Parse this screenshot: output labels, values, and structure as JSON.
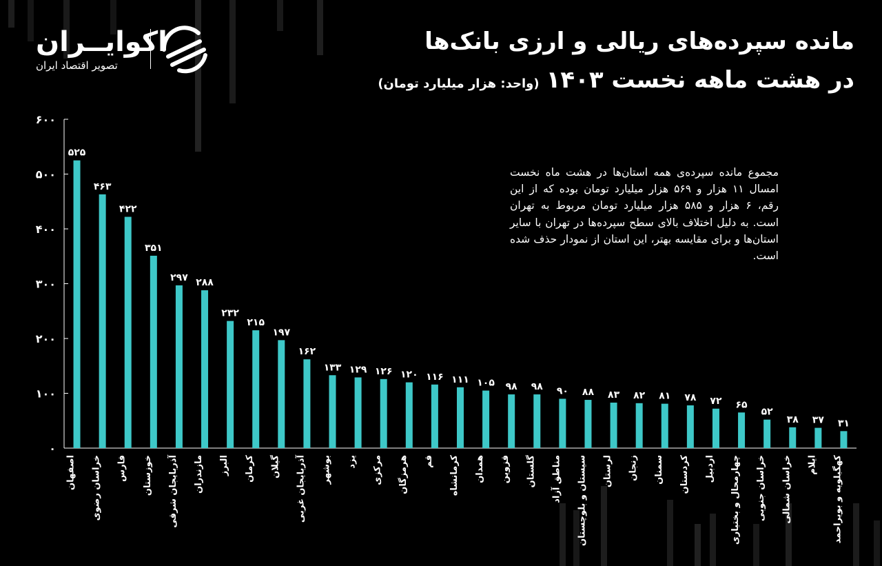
{
  "brand": {
    "name": "اکوایــران",
    "tagline": "تصویر اقتصاد ایران",
    "icon": "ecoiran-logo-icon"
  },
  "header": {
    "title_line1": "مانده سپرده‌های ریالی و ارزی بانک‌ها",
    "title_line2": "در هشت ماهه نخست ۱۴۰۳",
    "unit": "(واحد: هزار میلیارد تومان)"
  },
  "note": "مجموع مانده سپرده‌ی همه استان‌ها در هشت ماه نخست امسال ۱۱ هزار و ۵۶۹ هزار میلیارد تومان بوده که از این رقم، ۶ هزار و ۵۸۵ هزار میلیارد تومان مربوط به تهران است. به دلیل اختلاف بالای سطح سپرده‌ها در تهران با سایر استان‌ها و برای مقایسه بهتر، این استان از نمودار حذف شده است.",
  "colors": {
    "background": "#000000",
    "bar": "#3ec8c8",
    "text": "#ffffff"
  },
  "chart_data": {
    "type": "bar",
    "ylim": [
      0,
      600
    ],
    "yticks": [
      0,
      100,
      200,
      300,
      400,
      500,
      600
    ],
    "ytick_labels": [
      "۰",
      "۱۰۰",
      "۲۰۰",
      "۳۰۰",
      "۴۰۰",
      "۵۰۰",
      "۶۰۰"
    ],
    "grid": false,
    "categories": [
      "اصفهان",
      "خراسان رضوی",
      "فارس",
      "خوزستان",
      "آذربایجان شرقی",
      "مازندران",
      "البرز",
      "کرمان",
      "گیلان",
      "آذربایجان غربی",
      "بوشهر",
      "یزد",
      "مرکزی",
      "هرمزگان",
      "قم",
      "کرمانشاه",
      "همدان",
      "قزوین",
      "گلستان",
      "مناطق آزاد",
      "سیستان و بلوچستان",
      "لرستان",
      "زنجان",
      "سمنان",
      "کردستان",
      "اردبیل",
      "چهارمحال و بختیاری",
      "خراسان جنوبی",
      "خراسان شمالی",
      "ایلام",
      "کهگیلویه و بویراحمد"
    ],
    "values": [
      525,
      463,
      422,
      351,
      297,
      288,
      232,
      215,
      197,
      162,
      133,
      129,
      126,
      120,
      116,
      111,
      105,
      98,
      98,
      90,
      88,
      83,
      82,
      81,
      78,
      72,
      65,
      52,
      38,
      37,
      31
    ],
    "value_labels": [
      "۵۲۵",
      "۴۶۳",
      "۴۲۲",
      "۳۵۱",
      "۲۹۷",
      "۲۸۸",
      "۲۳۲",
      "۲۱۵",
      "۱۹۷",
      "۱۶۲",
      "۱۳۳",
      "۱۲۹",
      "۱۲۶",
      "۱۲۰",
      "۱۱۶",
      "۱۱۱",
      "۱۰۵",
      "۹۸",
      "۹۸",
      "۹۰",
      "۸۸",
      "۸۳",
      "۸۲",
      "۸۱",
      "۷۸",
      "۷۲",
      "۶۵",
      "۵۲",
      "۳۸",
      "۳۷",
      "۳۱"
    ]
  }
}
